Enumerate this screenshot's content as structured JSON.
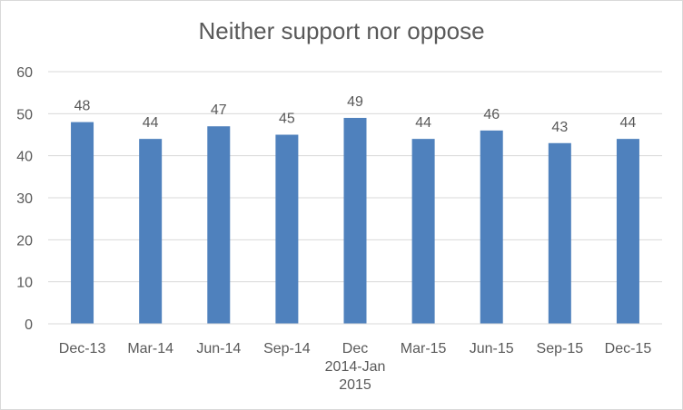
{
  "chart_data": {
    "type": "bar",
    "title": "Neither support nor oppose",
    "categories": [
      "Dec-13",
      "Mar-14",
      "Jun-14",
      "Sep-14",
      "Dec 2014-Jan 2015",
      "Mar-15",
      "Jun-15",
      "Sep-15",
      "Dec-15"
    ],
    "category_lines": [
      [
        "Dec-13"
      ],
      [
        "Mar-14"
      ],
      [
        "Jun-14"
      ],
      [
        "Sep-14"
      ],
      [
        "Dec",
        "2014-Jan",
        "2015"
      ],
      [
        "Mar-15"
      ],
      [
        "Jun-15"
      ],
      [
        "Sep-15"
      ],
      [
        "Dec-15"
      ]
    ],
    "values": [
      48,
      44,
      47,
      45,
      49,
      44,
      46,
      43,
      44
    ],
    "ylim": [
      0,
      60
    ],
    "yticks": [
      0,
      10,
      20,
      30,
      40,
      50,
      60
    ],
    "grid": true,
    "legend": "none",
    "bar_color": "#4f81bd",
    "grid_color": "#d9d9d9",
    "text_color": "#595959"
  }
}
